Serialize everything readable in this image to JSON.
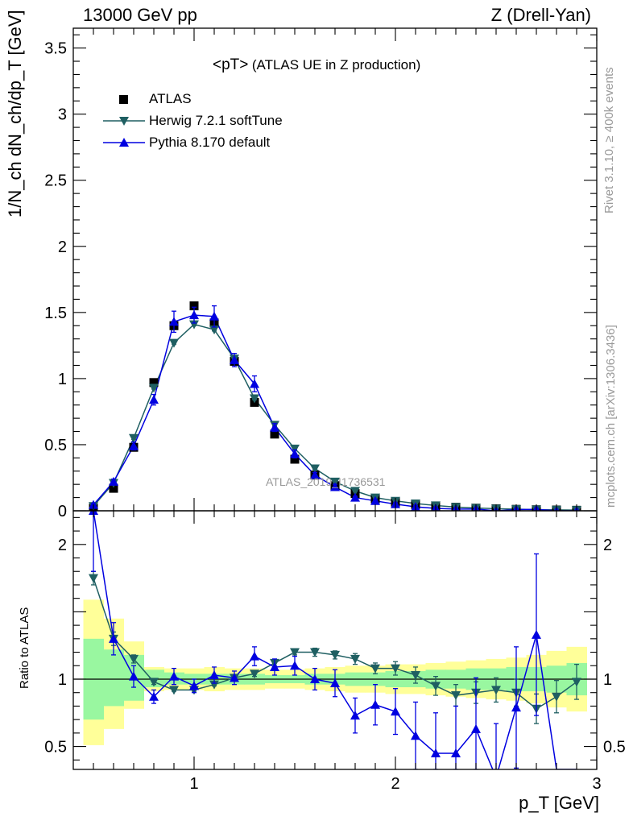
{
  "header": {
    "left": "13000 GeV pp",
    "right": "Z (Drell-Yan)"
  },
  "side_labels": {
    "rivet": "Rivet 3.1.10, ≥ 400k events",
    "mcplots": "mcplots.cern.ch [arXiv:1306.3436]"
  },
  "axes": {
    "ylabel_main": "1/N_ch dN_ch/dp_T [GeV]",
    "ylabel_ratio": "Ratio to ATLAS",
    "xlabel": "p_T [GeV]"
  },
  "colors": {
    "atlas": "#000000",
    "herwig": "#1f5f62",
    "pythia": "#0000e0",
    "band_inner": "#99f7a0",
    "band_outer": "#ffff99"
  },
  "chart_data": [
    {
      "type": "scatter",
      "title": "<pT>",
      "subtitle": "(ATLAS UE in Z production)",
      "watermark": "ATLAS_2019_I1736531",
      "xlim": [
        0.4,
        3.0
      ],
      "ylim": [
        0,
        3.65
      ],
      "xticks": [
        1,
        2,
        3
      ],
      "xtick_labels": [
        "1",
        "2",
        "3"
      ],
      "yticks": [
        0,
        0.5,
        1,
        1.5,
        2,
        2.5,
        3,
        3.5
      ],
      "ytick_labels": [
        "0",
        "0.5",
        "1",
        "1.5",
        "2",
        "2.5",
        "3",
        "3.5"
      ],
      "legend": [
        "ATLAS",
        "Herwig 7.2.1 softTune",
        "Pythia 8.170 default"
      ],
      "legend_position": "top-left",
      "x": [
        0.5,
        0.6,
        0.7,
        0.8,
        0.9,
        1.0,
        1.1,
        1.2,
        1.3,
        1.4,
        1.5,
        1.6,
        1.7,
        1.8,
        1.9,
        2.0,
        2.1,
        2.2,
        2.3,
        2.4,
        2.5,
        2.6,
        2.7,
        2.8,
        2.9
      ],
      "series": [
        {
          "name": "ATLAS",
          "marker": "square",
          "values": [
            0.02,
            0.17,
            0.48,
            0.97,
            1.4,
            1.55,
            1.42,
            1.13,
            0.82,
            0.58,
            0.39,
            0.27,
            0.19,
            0.13,
            0.09,
            0.065,
            0.048,
            0.036,
            0.027,
            0.02,
            0.015,
            0.011,
            0.008,
            0.006,
            0.004
          ]
        },
        {
          "name": "Herwig 7.2.1 softTune",
          "marker": "triangle-down",
          "values": [
            0.035,
            0.21,
            0.55,
            0.93,
            1.27,
            1.41,
            1.37,
            1.15,
            0.85,
            0.65,
            0.47,
            0.32,
            0.22,
            0.15,
            0.1,
            0.075,
            0.055,
            0.04,
            0.028,
            0.021,
            0.016,
            0.012,
            0.009,
            0.007,
            0.005
          ],
          "errors": [
            0.005,
            0.01,
            0.01,
            0.01,
            0.01,
            0.01,
            0.01,
            0.01,
            0.01,
            0.01,
            0.01,
            0.01,
            0.005,
            0.004,
            0.003,
            0.003,
            0.002,
            0.002,
            0.002,
            0.001,
            0.001,
            0.001,
            0.001,
            0.001,
            0.001
          ]
        },
        {
          "name": "Pythia 8.170 default",
          "marker": "triangle-up",
          "values": [
            0.045,
            0.22,
            0.49,
            0.84,
            1.43,
            1.48,
            1.47,
            1.14,
            0.96,
            0.63,
            0.43,
            0.27,
            0.18,
            0.1,
            0.075,
            0.05,
            0.03,
            0.018,
            0.013,
            0.013,
            0.0,
            0.009,
            0.011,
            0.0,
            0.0
          ],
          "errors": [
            0.01,
            0.02,
            0.03,
            0.04,
            0.08,
            0.06,
            0.08,
            0.05,
            0.06,
            0.03,
            0.03,
            0.02,
            0.02,
            0.01,
            0.01,
            0.01,
            0.01,
            0.008,
            0.006,
            0.006,
            0.005,
            0.005,
            0.005,
            0.004,
            0.003
          ]
        }
      ]
    },
    {
      "type": "scatter",
      "title": "",
      "xlim": [
        0.4,
        3.0
      ],
      "ylim": [
        0.33,
        2.25
      ],
      "xticks": [
        1,
        2,
        3
      ],
      "xtick_labels": [
        "1",
        "2",
        "3"
      ],
      "yticks": [
        0.5,
        1,
        2
      ],
      "ytick_labels": [
        "0.5",
        "1",
        "2"
      ],
      "reference_line": 1.0,
      "band_inner": [
        [
          0.7,
          1.3
        ],
        [
          0.8,
          1.22
        ],
        [
          0.84,
          1.18
        ],
        [
          0.94,
          1.07
        ],
        [
          0.96,
          1.05
        ],
        [
          0.96,
          1.04
        ],
        [
          0.96,
          1.04
        ],
        [
          0.96,
          1.04
        ],
        [
          0.96,
          1.04
        ],
        [
          0.97,
          1.03
        ],
        [
          0.97,
          1.03
        ],
        [
          0.96,
          1.04
        ],
        [
          0.96,
          1.04
        ],
        [
          0.95,
          1.05
        ],
        [
          0.95,
          1.05
        ],
        [
          0.94,
          1.06
        ],
        [
          0.94,
          1.06
        ],
        [
          0.93,
          1.07
        ],
        [
          0.93,
          1.07
        ],
        [
          0.92,
          1.08
        ],
        [
          0.92,
          1.08
        ],
        [
          0.91,
          1.09
        ],
        [
          0.91,
          1.09
        ],
        [
          0.9,
          1.1
        ],
        [
          0.88,
          1.12
        ]
      ],
      "band_outer": [
        [
          0.51,
          1.59
        ],
        [
          0.63,
          1.45
        ],
        [
          0.78,
          1.28
        ],
        [
          0.91,
          1.09
        ],
        [
          0.92,
          1.08
        ],
        [
          0.92,
          1.08
        ],
        [
          0.91,
          1.09
        ],
        [
          0.92,
          1.08
        ],
        [
          0.92,
          1.08
        ],
        [
          0.93,
          1.07
        ],
        [
          0.93,
          1.07
        ],
        [
          0.92,
          1.08
        ],
        [
          0.91,
          1.09
        ],
        [
          0.9,
          1.1
        ],
        [
          0.9,
          1.1
        ],
        [
          0.89,
          1.11
        ],
        [
          0.89,
          1.11
        ],
        [
          0.88,
          1.12
        ],
        [
          0.87,
          1.13
        ],
        [
          0.86,
          1.14
        ],
        [
          0.85,
          1.15
        ],
        [
          0.84,
          1.16
        ],
        [
          0.82,
          1.18
        ],
        [
          0.79,
          1.21
        ],
        [
          0.76,
          1.24
        ]
      ],
      "series": [
        {
          "name": "Herwig 7.2.1 softTune",
          "marker": "triangle-down",
          "values": [
            1.75,
            1.3,
            1.15,
            0.98,
            0.92,
            0.92,
            0.96,
            1.01,
            1.04,
            1.12,
            1.2,
            1.2,
            1.18,
            1.15,
            1.08,
            1.08,
            1.03,
            0.95,
            0.88,
            0.9,
            0.92,
            0.9,
            0.78,
            0.87,
            0.98
          ],
          "errors": [
            0.05,
            0.05,
            0.03,
            0.02,
            0.01,
            0.01,
            0.01,
            0.01,
            0.02,
            0.02,
            0.02,
            0.03,
            0.03,
            0.04,
            0.04,
            0.05,
            0.06,
            0.07,
            0.08,
            0.08,
            0.09,
            0.1,
            0.11,
            0.12,
            0.13
          ]
        },
        {
          "name": "Pythia 8.170 default",
          "marker": "triangle-up",
          "values": [
            2.25,
            1.3,
            1.02,
            0.87,
            1.02,
            0.95,
            1.03,
            1.01,
            1.17,
            1.09,
            1.1,
            1.0,
            0.97,
            0.73,
            0.81,
            0.76,
            0.58,
            0.45,
            0.45,
            0.63,
            0.27,
            0.79,
            1.33,
            0.33,
            0.33
          ],
          "errors": [
            0.45,
            0.12,
            0.08,
            0.05,
            0.06,
            0.05,
            0.06,
            0.05,
            0.07,
            0.06,
            0.07,
            0.08,
            0.1,
            0.13,
            0.15,
            0.17,
            0.25,
            0.3,
            0.35,
            0.38,
            0.4,
            0.45,
            0.6,
            0.0,
            0.0
          ]
        }
      ]
    }
  ]
}
